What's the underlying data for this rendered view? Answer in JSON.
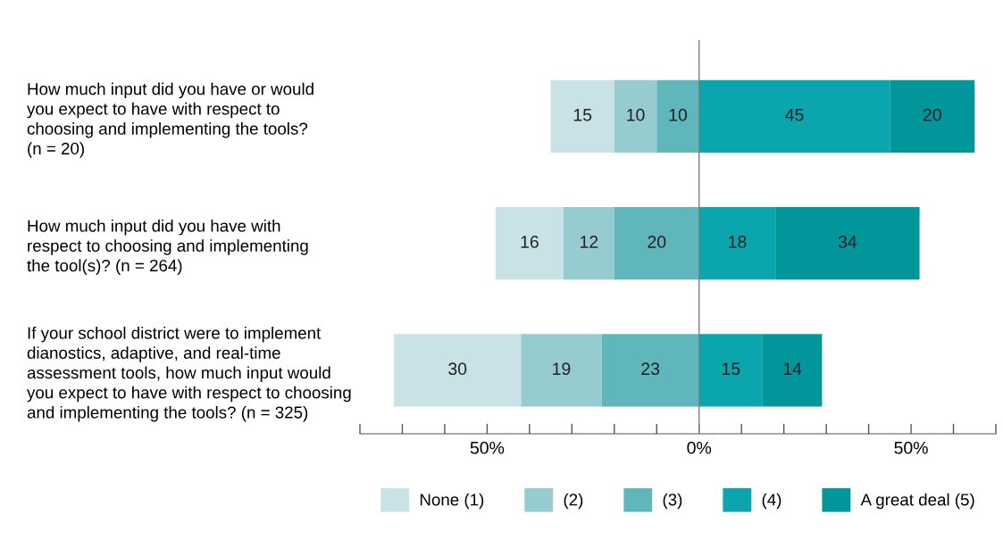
{
  "chart_data": {
    "type": "bar",
    "orientation": "horizontal",
    "data_labels": true,
    "categories": [
      "How much input did you have or would\nyou expect to have with respect to\nchoosing and implementing the tools?\n(n = 20)",
      "How much input did you have with\nrespect to choosing and implementing\nthe tool(s)? (n = 264)",
      "If your school district were to implement\ndianostics, adaptive, and real-time\nassessment tools, how much input would\nyou expect to have with respect to choosing\nand implementing the tools? (n = 325)"
    ],
    "series": [
      {
        "name": "None (1)",
        "color": "#c8e2e5",
        "values": [
          15,
          16,
          30
        ],
        "base": [
          -35,
          -48,
          -72
        ]
      },
      {
        "name": "(2)",
        "color": "#96cbd0",
        "values": [
          10,
          12,
          19
        ],
        "base": [
          -20,
          -32,
          -42
        ]
      },
      {
        "name": "(3)",
        "color": "#5fb7bc",
        "values": [
          10,
          20,
          23
        ],
        "base": [
          -10,
          -20,
          -23
        ]
      },
      {
        "name": "(4)",
        "color": "#0ba5ad",
        "values": [
          45,
          18,
          15
        ],
        "base": [
          0,
          0,
          0
        ]
      },
      {
        "name": "A great deal (5)",
        "color": "#00969a",
        "values": [
          20,
          34,
          14
        ],
        "base": [
          45,
          18,
          15
        ]
      }
    ],
    "xlim": [
      -80,
      70
    ],
    "xticks": [
      {
        "value": -80,
        "label": null
      },
      {
        "value": -70,
        "label": null
      },
      {
        "value": -60,
        "label": null
      },
      {
        "value": -50,
        "label": "50%"
      },
      {
        "value": -40,
        "label": null
      },
      {
        "value": -30,
        "label": null
      },
      {
        "value": -20,
        "label": null
      },
      {
        "value": -10,
        "label": null
      },
      {
        "value": 0,
        "label": "0%"
      },
      {
        "value": 10,
        "label": null
      },
      {
        "value": 20,
        "label": null
      },
      {
        "value": 30,
        "label": null
      },
      {
        "value": 40,
        "label": null
      },
      {
        "value": 50,
        "label": "50%"
      },
      {
        "value": 60,
        "label": null
      },
      {
        "value": 70,
        "label": null
      }
    ],
    "ref_lines": [
      {
        "axis": "x",
        "value": 0,
        "color": "#7f7f7f"
      }
    ],
    "grid": false,
    "legend": "bottom"
  }
}
